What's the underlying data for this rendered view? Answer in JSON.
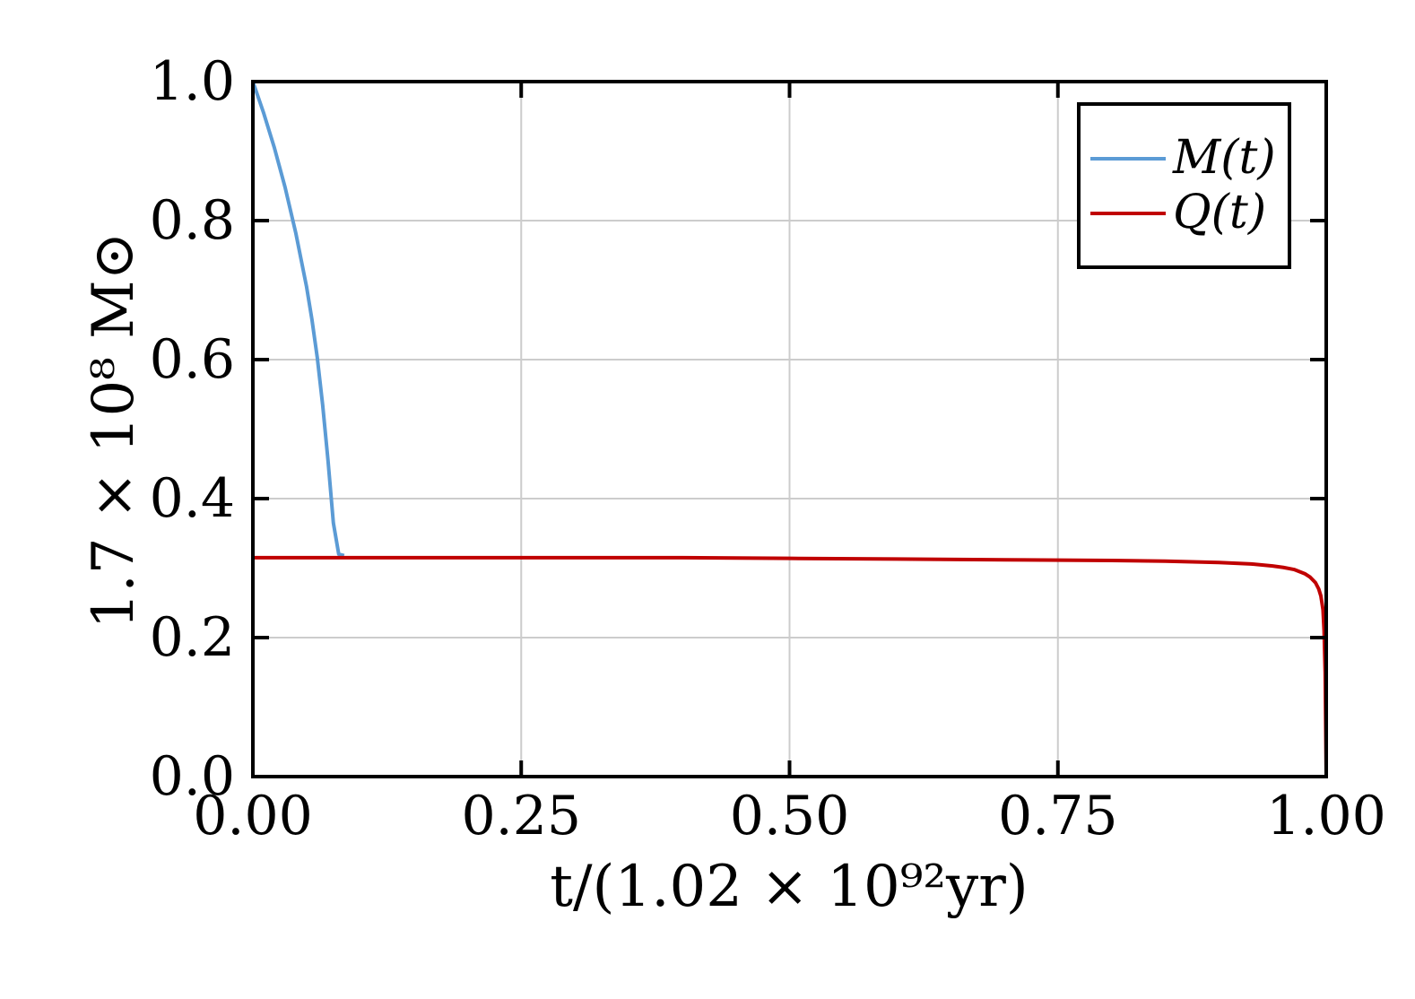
{
  "chart_data": {
    "type": "line",
    "title": "",
    "xlabel": "t/(1.02 × 10⁹²yr)",
    "ylabel": "1.7 × 10⁸ M⊙",
    "xlim": [
      0,
      1
    ],
    "ylim": [
      0,
      1
    ],
    "grid": true,
    "legend_position": "top-right",
    "x_ticks": [
      "0.00",
      "0.25",
      "0.50",
      "0.75",
      "1.00"
    ],
    "y_ticks": [
      "0.0",
      "0.2",
      "0.4",
      "0.6",
      "0.8",
      "1.0"
    ],
    "series": [
      {
        "name": "M(t)",
        "color": "#5b9bd5",
        "x": [
          0.0,
          0.01,
          0.02,
          0.03,
          0.04,
          0.05,
          0.055,
          0.06,
          0.065,
          0.07,
          0.075,
          0.08,
          0.085
        ],
        "y": [
          1.0,
          0.955,
          0.905,
          0.848,
          0.782,
          0.705,
          0.658,
          0.603,
          0.535,
          0.455,
          0.365,
          0.32,
          0.318
        ]
      },
      {
        "name": "Q(t)",
        "color": "#c00000",
        "x": [
          0.0,
          0.1,
          0.2,
          0.3,
          0.4,
          0.5,
          0.6,
          0.7,
          0.8,
          0.85,
          0.9,
          0.93,
          0.95,
          0.96,
          0.97,
          0.98,
          0.985,
          0.99,
          0.993,
          0.995,
          0.997,
          0.998,
          0.999,
          1.0
        ],
        "y": [
          0.315,
          0.315,
          0.315,
          0.315,
          0.315,
          0.314,
          0.313,
          0.312,
          0.311,
          0.31,
          0.308,
          0.306,
          0.303,
          0.301,
          0.298,
          0.292,
          0.287,
          0.279,
          0.27,
          0.26,
          0.24,
          0.21,
          0.15,
          0.0
        ]
      }
    ]
  }
}
